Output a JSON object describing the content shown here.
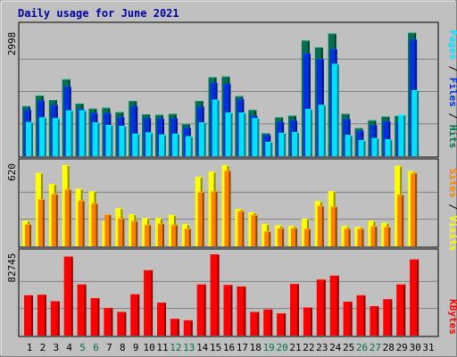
{
  "chart_data": [
    {
      "type": "bar",
      "title": "Daily usage for June 2021",
      "categories": [
        "1",
        "2",
        "3",
        "4",
        "5",
        "6",
        "7",
        "8",
        "9",
        "10",
        "11",
        "12",
        "13",
        "14",
        "15",
        "16",
        "17",
        "18",
        "19",
        "20",
        "21",
        "22",
        "23",
        "24",
        "25",
        "26",
        "27",
        "28",
        "29",
        "30",
        "31"
      ],
      "weekend_days": [
        "5",
        "6",
        "12",
        "13",
        "19",
        "20",
        "26",
        "27"
      ],
      "ymax_label": "2998",
      "ylim": [
        0,
        2998
      ],
      "side_labels": [
        "Pages",
        "/",
        "Files",
        "/",
        "Hits"
      ],
      "series": [
        {
          "name": "Hits",
          "color": "#007050",
          "values": [
            1160,
            1405,
            1300,
            1780,
            1220,
            1100,
            1120,
            1020,
            1280,
            970,
            960,
            980,
            740,
            1280,
            1830,
            1845,
            1390,
            1070,
            530,
            900,
            940,
            2680,
            2520,
            2840,
            980,
            650,
            830,
            920,
            935,
            2860,
            0
          ]
        },
        {
          "name": "Files",
          "color": "#0030e0",
          "values": [
            1080,
            1290,
            1190,
            1610,
            1090,
            1000,
            1000,
            910,
            1160,
            880,
            870,
            880,
            660,
            1150,
            1700,
            1680,
            1320,
            940,
            490,
            790,
            830,
            2380,
            2250,
            2480,
            860,
            590,
            720,
            810,
            790,
            2700,
            0
          ]
        },
        {
          "name": "Pages",
          "color": "#00e0ff",
          "values": [
            790,
            900,
            880,
            1060,
            1060,
            780,
            720,
            700,
            520,
            550,
            500,
            520,
            460,
            780,
            1310,
            1010,
            1010,
            880,
            330,
            540,
            560,
            1090,
            1190,
            2140,
            490,
            370,
            420,
            390,
            960,
            1530,
            0
          ]
        }
      ]
    },
    {
      "type": "bar",
      "categories": [
        "1",
        "2",
        "3",
        "4",
        "5",
        "6",
        "7",
        "8",
        "9",
        "10",
        "11",
        "12",
        "13",
        "14",
        "15",
        "16",
        "17",
        "18",
        "19",
        "20",
        "21",
        "22",
        "23",
        "24",
        "25",
        "26",
        "27",
        "28",
        "29",
        "30",
        "31"
      ],
      "ymax_label": "620",
      "ylim": [
        0,
        620
      ],
      "side_labels": [
        "Sites",
        "/",
        "Visits"
      ],
      "series": [
        {
          "name": "Visits",
          "color": "#ffff00",
          "values": [
            195,
            560,
            475,
            620,
            440,
            420,
            195,
            290,
            245,
            215,
            215,
            240,
            170,
            530,
            570,
            620,
            285,
            260,
            170,
            160,
            155,
            210,
            345,
            420,
            155,
            150,
            195,
            180,
            615,
            575,
            0
          ]
        },
        {
          "name": "Sites",
          "color": "#ff8000",
          "values": [
            170,
            360,
            400,
            435,
            350,
            330,
            245,
            215,
            195,
            165,
            175,
            165,
            135,
            415,
            420,
            580,
            270,
            240,
            115,
            140,
            140,
            135,
            310,
            305,
            135,
            135,
            155,
            150,
            395,
            560,
            0
          ]
        }
      ]
    },
    {
      "type": "bar",
      "categories": [
        "1",
        "2",
        "3",
        "4",
        "5",
        "6",
        "7",
        "8",
        "9",
        "10",
        "11",
        "12",
        "13",
        "14",
        "15",
        "16",
        "17",
        "18",
        "19",
        "20",
        "21",
        "22",
        "23",
        "24",
        "25",
        "26",
        "27",
        "28",
        "29",
        "30",
        "31"
      ],
      "ymax_label": "82745",
      "ylim": [
        0,
        82745
      ],
      "side_labels": [
        "KBytes"
      ],
      "series": [
        {
          "name": "KBytes",
          "color": "#ff0000",
          "values": [
            41000,
            41500,
            35000,
            80500,
            52000,
            38000,
            28000,
            24000,
            42000,
            66500,
            33500,
            17000,
            15500,
            52000,
            82745,
            51500,
            50000,
            24000,
            26500,
            22500,
            52500,
            28500,
            57000,
            61000,
            34500,
            41000,
            30000,
            37000,
            52000,
            77500,
            0
          ]
        }
      ]
    }
  ]
}
